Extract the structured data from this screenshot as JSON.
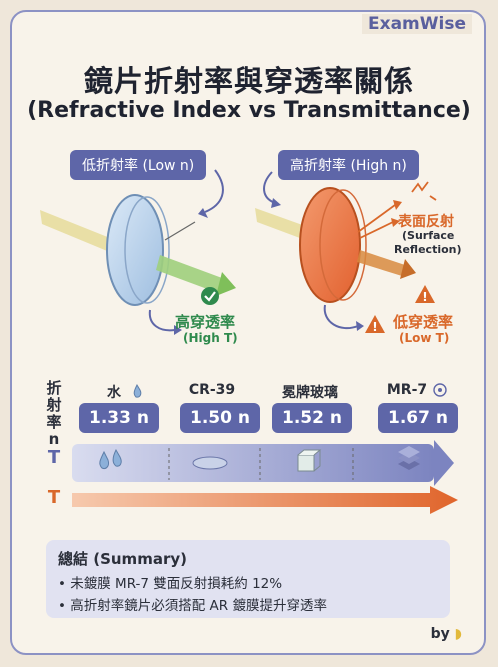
{
  "brand": "ExamWise",
  "title_zh": "鏡片折射率與穿透率關係",
  "title_en": "(Refractive Index vs Transmittance)",
  "low_lens": {
    "label": "低折射率 (Low n)",
    "result_zh": "高穿透率",
    "result_en": "(High T)"
  },
  "high_lens": {
    "label": "高折射率 (High n)",
    "reflection_zh": "表面反射",
    "reflection_en1": "(Surface",
    "reflection_en2": "Reflection)",
    "result_zh": "低穿透率",
    "result_en": "(Low T)"
  },
  "axis": {
    "label_chars": [
      "折",
      "射",
      "率",
      "n"
    ],
    "row1_symbol": "T",
    "row2_symbol": "T"
  },
  "materials": [
    {
      "name": "水",
      "index": "1.33 n",
      "icon": "water-drop-icon"
    },
    {
      "name": "CR-39",
      "index": "1.50 n",
      "icon": "lens-disc-icon"
    },
    {
      "name": "冕牌玻璃",
      "index": "1.52 n",
      "icon": "glass-cube-icon"
    },
    {
      "name": "MR-7",
      "index": "1.67 n",
      "icon": "layers-icon"
    }
  ],
  "summary": {
    "title": "總結 (Summary)",
    "items": [
      "• 未鍍膜 MR-7 雙面反射損耗約 12%",
      "• 高折射率鏡片必須搭配 AR 鍍膜提升穿透率"
    ]
  },
  "footer": "by",
  "colors": {
    "accent": "#5e66a8",
    "low_lens": "#bcd3ec",
    "high_lens": "#ec7a4a",
    "good": "#2f8a4d",
    "bad": "#d9682a"
  }
}
